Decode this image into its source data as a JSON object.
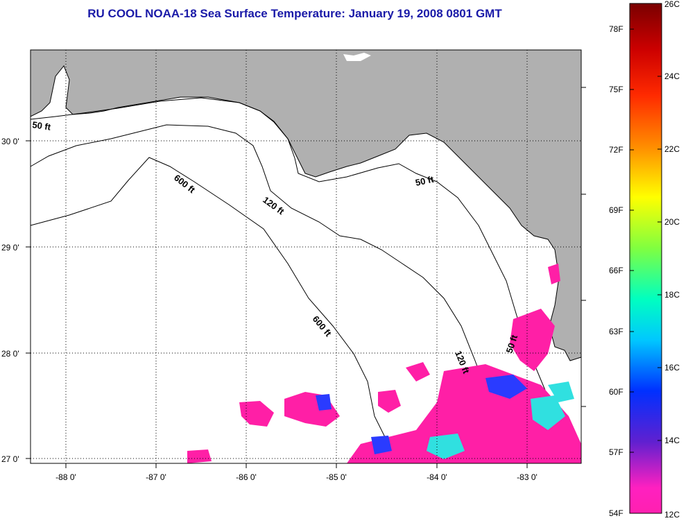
{
  "title": "RU COOL  NOAA-18  Sea Surface Temperature:  January 19, 2008 0801 GMT",
  "map": {
    "lon_ticks": [
      "-88 0'",
      "-87 0'",
      "-86 0'",
      "-85 0'",
      "-84 0'",
      "-83 0'"
    ],
    "lat_ticks": [
      "30 0'",
      "29 0'",
      "28 0'",
      "27 0'"
    ],
    "contours": {
      "c50_west": "50 ft",
      "c50_east": "50 ft",
      "c50_coast": "50 ft",
      "c600_north": "600 ft",
      "c600_south": "600 ft",
      "c120_north": "120 ft",
      "c120_south": "120 ft"
    },
    "land_color": "#b0b0b0",
    "water_color": "#ffffff",
    "sst_patch_color": "#ff1fa6",
    "sst_cool_color": "#2a3bff",
    "sst_warm_color": "#30e0e0"
  },
  "colorbar": {
    "f_labels": [
      "78F",
      "75F",
      "72F",
      "69F",
      "66F",
      "63F",
      "60F",
      "57F",
      "54F"
    ],
    "c_labels": [
      "26C",
      "24C",
      "22C",
      "20C",
      "18C",
      "16C",
      "14C",
      "12C"
    ]
  }
}
